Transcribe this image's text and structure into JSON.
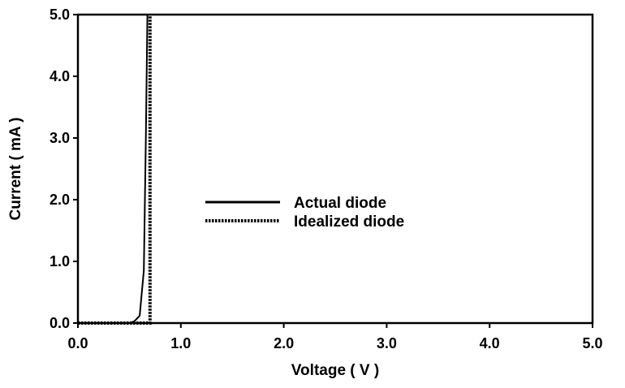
{
  "chart_data": {
    "type": "line",
    "title": "",
    "xlabel": "Voltage ( V )",
    "ylabel": "Current ( mA )",
    "xlim": [
      0,
      5
    ],
    "ylim": [
      0,
      5
    ],
    "xticks": [
      0,
      1,
      2,
      3,
      4,
      5
    ],
    "yticks": [
      0,
      1,
      2,
      3,
      4,
      5
    ],
    "xtick_labels": [
      "0.0",
      "1.0",
      "2.0",
      "3.0",
      "4.0",
      "5.0"
    ],
    "ytick_labels": [
      "0.0",
      "1.0",
      "2.0",
      "3.0",
      "4.0",
      "5.0"
    ],
    "grid": false,
    "legend_position": "center",
    "series": [
      {
        "name": "Actual diode",
        "style": "solid",
        "color": "#000000",
        "points": [
          {
            "x": 0.0,
            "y": 0.0
          },
          {
            "x": 0.5,
            "y": 0.0
          },
          {
            "x": 0.55,
            "y": 0.03
          },
          {
            "x": 0.6,
            "y": 0.12
          },
          {
            "x": 0.64,
            "y": 0.85
          },
          {
            "x": 0.66,
            "y": 3.0
          },
          {
            "x": 0.675,
            "y": 5.0
          }
        ]
      },
      {
        "name": "Idealized diode",
        "style": "dotted",
        "color": "#000000",
        "points": [
          {
            "x": 0.0,
            "y": 0.0
          },
          {
            "x": 0.7,
            "y": 0.0
          },
          {
            "x": 0.7,
            "y": 5.0
          }
        ]
      }
    ]
  }
}
